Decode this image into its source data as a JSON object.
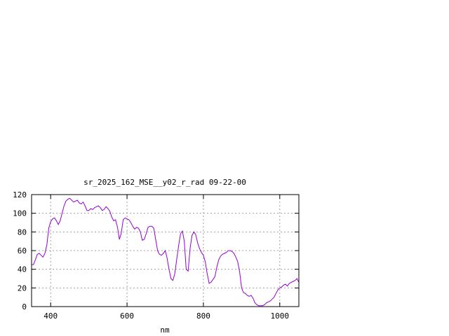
{
  "chart_data": {
    "type": "line",
    "title": "sr_2025_162_MSE__y02_r_rad 09-22-00",
    "xlabel": "nm",
    "ylabel": "",
    "xlim": [
      350,
      1050
    ],
    "ylim": [
      0,
      120
    ],
    "xticks": [
      400,
      600,
      800,
      1000
    ],
    "yticks": [
      0,
      20,
      40,
      60,
      80,
      100,
      120
    ],
    "grid": true,
    "line_color": "#9400d3",
    "series": [
      {
        "x": [
          350,
          355,
          360,
          365,
          370,
          375,
          380,
          385,
          390,
          395,
          400,
          405,
          410,
          415,
          420,
          425,
          430,
          435,
          440,
          445,
          450,
          455,
          460,
          465,
          470,
          475,
          480,
          485,
          490,
          495,
          500,
          505,
          510,
          515,
          520,
          525,
          530,
          535,
          540,
          545,
          550,
          555,
          560,
          565,
          570,
          575,
          580,
          585,
          590,
          595,
          600,
          605,
          610,
          615,
          620,
          625,
          630,
          635,
          640,
          645,
          650,
          655,
          660,
          665,
          670,
          675,
          680,
          685,
          690,
          695,
          700,
          705,
          710,
          715,
          720,
          725,
          730,
          735,
          740,
          745,
          750,
          755,
          760,
          765,
          770,
          775,
          780,
          785,
          790,
          795,
          800,
          805,
          810,
          815,
          820,
          825,
          830,
          835,
          840,
          845,
          850,
          855,
          860,
          865,
          870,
          875,
          880,
          885,
          890,
          895,
          900,
          905,
          910,
          915,
          920,
          925,
          930,
          935,
          940,
          945,
          950,
          955,
          960,
          965,
          970,
          975,
          980,
          985,
          990,
          995,
          1000,
          1005,
          1010,
          1015,
          1020,
          1025,
          1030,
          1035,
          1040,
          1045,
          1050
        ],
        "y": [
          45,
          45,
          50,
          56,
          57,
          55,
          53,
          57,
          66,
          84,
          91,
          94,
          95,
          92,
          88,
          92,
          100,
          108,
          113,
          115,
          116,
          114,
          112,
          113,
          114,
          111,
          110,
          112,
          108,
          103,
          103,
          105,
          104,
          106,
          107,
          108,
          106,
          103,
          104,
          107,
          105,
          102,
          96,
          92,
          93,
          85,
          72,
          79,
          93,
          95,
          94,
          93,
          90,
          86,
          83,
          85,
          84,
          80,
          71,
          72,
          78,
          85,
          86,
          86,
          84,
          72,
          60,
          56,
          55,
          57,
          60,
          52,
          40,
          30,
          28,
          35,
          50,
          65,
          78,
          81,
          70,
          40,
          38,
          62,
          76,
          80,
          77,
          68,
          62,
          58,
          55,
          48,
          35,
          25,
          26,
          29,
          32,
          42,
          50,
          54,
          56,
          57,
          58,
          60,
          60,
          59,
          57,
          53,
          48,
          37,
          20,
          15,
          14,
          12,
          11,
          12,
          9,
          4,
          2,
          1,
          1,
          1,
          2,
          4,
          5,
          6,
          8,
          10,
          14,
          18,
          20,
          21,
          23,
          24,
          22,
          25,
          26,
          27,
          28,
          30,
          26
        ]
      }
    ]
  }
}
